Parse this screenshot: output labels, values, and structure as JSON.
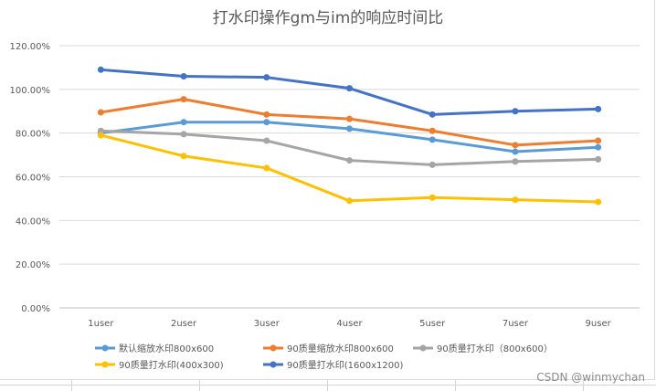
{
  "chart_data": {
    "type": "line",
    "title": "打水印操作gm与im的响应时间比",
    "categories": [
      "1user",
      "2user",
      "3user",
      "4user",
      "5user",
      "7user",
      "9user"
    ],
    "ylim": [
      0,
      1.2
    ],
    "yticks": [
      0,
      0.2,
      0.4,
      0.6,
      0.8,
      1.0,
      1.2
    ],
    "ytick_labels": [
      "0.00%",
      "20.00%",
      "40.00%",
      "60.00%",
      "80.00%",
      "100.00%",
      "120.00%"
    ],
    "grid": true,
    "legend_position": "bottom",
    "series": [
      {
        "name": "默认缩放水印800x600",
        "color": "#5b9bd5",
        "values": [
          0.8,
          0.85,
          0.85,
          0.82,
          0.77,
          0.715,
          0.735
        ]
      },
      {
        "name": "90质量缩放水印800x600",
        "color": "#ed7d31",
        "values": [
          0.895,
          0.955,
          0.885,
          0.865,
          0.81,
          0.745,
          0.765
        ]
      },
      {
        "name": "90质量打水印（800x600）",
        "color": "#a5a5a5",
        "values": [
          0.81,
          0.795,
          0.765,
          0.675,
          0.655,
          0.67,
          0.68
        ]
      },
      {
        "name": "90质量打水印(400x300)",
        "color": "#ffc000",
        "values": [
          0.79,
          0.695,
          0.64,
          0.49,
          0.505,
          0.495,
          0.485
        ]
      },
      {
        "name": "90质量打水印(1600x1200)",
        "color": "#4472c4",
        "values": [
          1.09,
          1.06,
          1.055,
          1.005,
          0.885,
          0.9,
          0.91
        ]
      }
    ]
  },
  "watermark": "CSDN @winmychan"
}
